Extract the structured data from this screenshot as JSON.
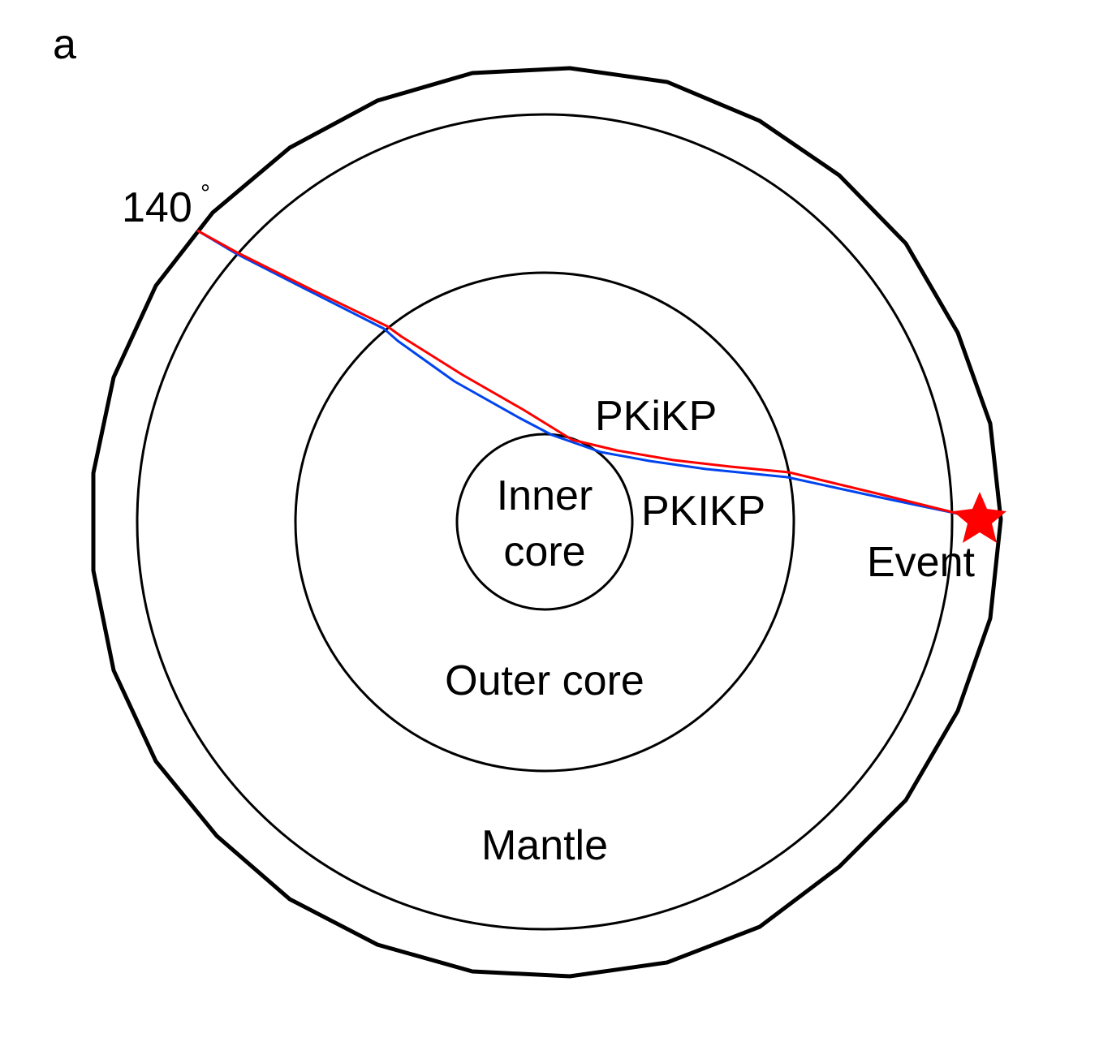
{
  "panel_label": "a",
  "distance_label": "140",
  "degree_symbol": "°",
  "labels": {
    "inner_core_line1": "Inner",
    "inner_core_line2": "core",
    "outer_core": "Outer core",
    "mantle": "Mantle",
    "event": "Event"
  },
  "phases": [
    {
      "name": "PKiKP",
      "color": "#ff0000"
    },
    {
      "name": "PKIKP",
      "color": "#0044ee"
    }
  ],
  "colors": {
    "outline": "#000000",
    "event_marker": "#ff0000"
  },
  "icons": {
    "event_marker": "star-icon"
  }
}
